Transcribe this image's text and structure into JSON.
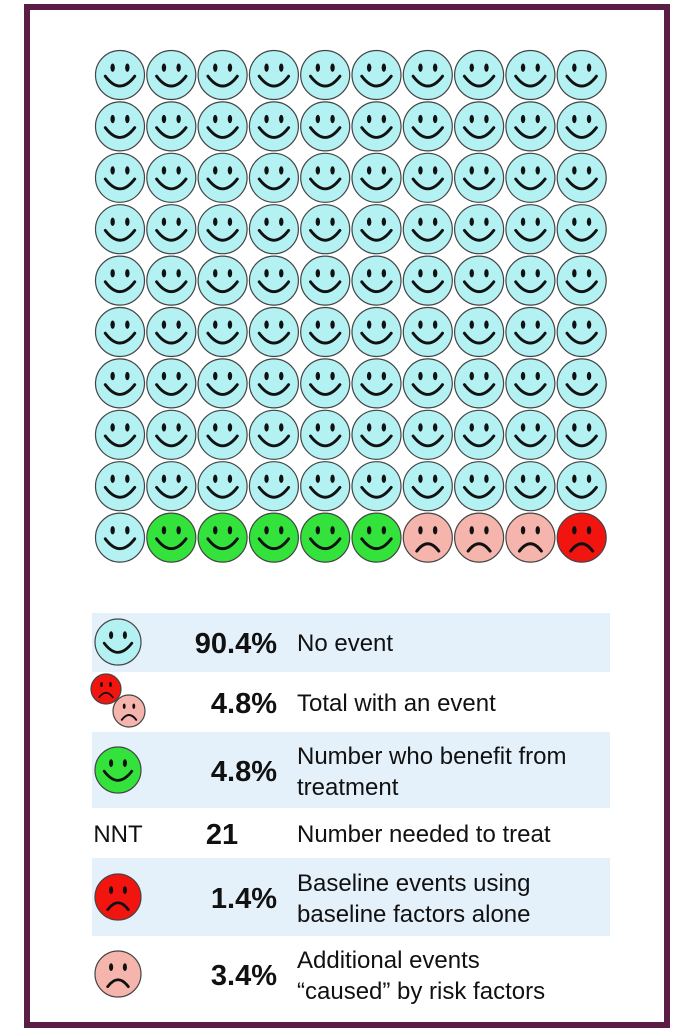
{
  "icon_array": [
    {
      "mood": "happy",
      "color": "#b3f1f3",
      "count": 91
    },
    {
      "mood": "happy",
      "color": "#33e23a",
      "count": 5
    },
    {
      "mood": "sad",
      "color": "#f5b5ad",
      "count": 3
    },
    {
      "mood": "sad",
      "color": "#f2150f",
      "count": 1
    }
  ],
  "legend": [
    {
      "value": "90.4%",
      "label": "No event"
    },
    {
      "value": "4.8%",
      "label": "Total with an event"
    },
    {
      "value": "4.8%",
      "label": "Number who benefit from treatment"
    },
    {
      "symbol": "NNT",
      "value": "21",
      "label": "Number needed to treat"
    },
    {
      "value": "1.4%",
      "label": "Baseline events using baseline factors alone"
    },
    {
      "value": "3.4%",
      "label": "Additional events “caused” by risk factors"
    }
  ]
}
